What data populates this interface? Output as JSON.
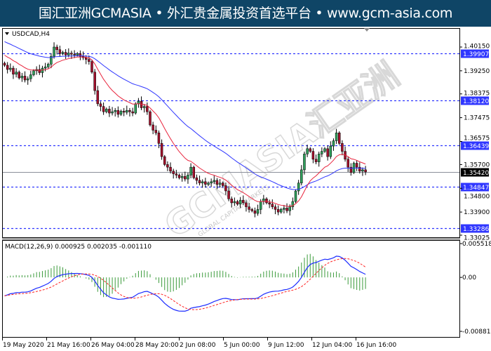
{
  "banner": {
    "text": "国汇亚洲GCMASIA • 外汇贵金属投资首选平台 • www.gcm-asia.com"
  },
  "watermark": {
    "text": "GCMASIA汇亚洲",
    "subtext": "GLOBAL CAPITAL MARKETS"
  },
  "chart": {
    "symbol_label": "USDCAD,H4",
    "current_price": "1.35420",
    "colors": {
      "bull": "#2e9e5a",
      "bear": "#a3102c",
      "ma_slow": "#2f36ff",
      "ma_fast": "#e8233c",
      "level": "#2f36ff",
      "macd_hist": "#3a9a3a",
      "macd_line": "#1c2cff",
      "signal_line": "#ff2020",
      "banner": "#0f4566"
    },
    "levels": [
      "1.39907",
      "1.38120",
      "1.36439",
      "1.34847",
      "1.33286"
    ],
    "price_ticks": [
      "1.40150",
      "1.39250",
      "1.38375",
      "1.37475",
      "1.36575",
      "1.35700",
      "1.34800",
      "1.33900",
      "1.33025"
    ],
    "time_labels": [
      "19 May 2020",
      "21 May 16:00",
      "26 May 04:00",
      "28 May 20:00",
      "2 Jun 08:00",
      "5 Jun 00:00",
      "9 Jun 12:00",
      "12 Jun 04:00",
      "16 Jun 16:00"
    ]
  },
  "macd": {
    "label": "MACD(12,26,9) 0.000925 0.002035 -0.001110",
    "ticks": [
      "0.005518",
      "0.00",
      "-0.008811"
    ]
  },
  "chart_data": {
    "type": "candlestick",
    "closes": [
      1.3946,
      1.393,
      1.3935,
      1.3912,
      1.392,
      1.3898,
      1.3905,
      1.389,
      1.3895,
      1.391,
      1.3925,
      1.393,
      1.3918,
      1.3935,
      1.394,
      1.395,
      1.398,
      1.4015,
      1.4005,
      1.399,
      1.3995,
      1.3985,
      1.3992,
      1.3988,
      1.3985,
      1.399,
      1.398,
      1.3975,
      1.3968,
      1.396,
      1.392,
      1.385,
      1.38,
      1.379,
      1.377,
      1.378,
      1.3765,
      1.377,
      1.3775,
      1.376,
      1.3772,
      1.3768,
      1.3775,
      1.377,
      1.3765,
      1.38,
      1.381,
      1.3785,
      1.379,
      1.377,
      1.372,
      1.37,
      1.369,
      1.365,
      1.36,
      1.357,
      1.356,
      1.3545,
      1.3535,
      1.353,
      1.352,
      1.3525,
      1.3515,
      1.353,
      1.356,
      1.352,
      1.351,
      1.35,
      1.3505,
      1.3495,
      1.35,
      1.3505,
      1.351,
      1.3495,
      1.35,
      1.349,
      1.347,
      1.344,
      1.3425,
      1.343,
      1.342,
      1.3435,
      1.3425,
      1.341,
      1.34,
      1.3395,
      1.3385,
      1.34,
      1.343,
      1.344,
      1.3425,
      1.342,
      1.341,
      1.34,
      1.339,
      1.34,
      1.3405,
      1.3395,
      1.341,
      1.343,
      1.347,
      1.35,
      1.355,
      1.361,
      1.363,
      1.362,
      1.359,
      1.358,
      1.361,
      1.362,
      1.363,
      1.36,
      1.364,
      1.366,
      1.369,
      1.365,
      1.362,
      1.359,
      1.356,
      1.354,
      1.3575,
      1.356,
      1.3545,
      1.355,
      1.3542
    ],
    "ylim": [
      1.33025,
      1.4015
    ],
    "macd_ylim": [
      -0.008811,
      0.005518
    ]
  }
}
